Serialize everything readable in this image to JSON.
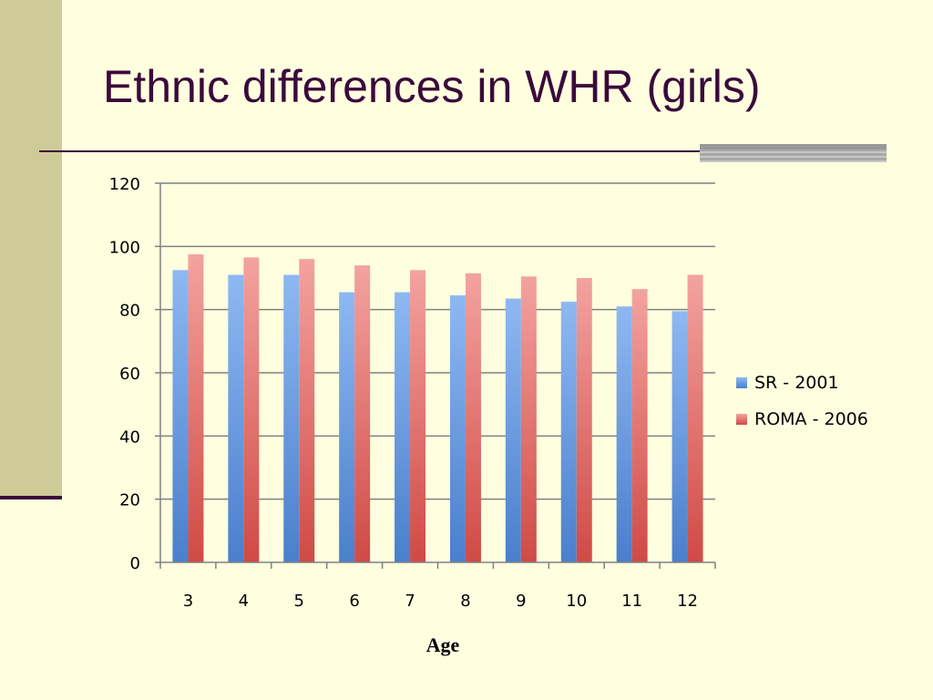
{
  "slide": {
    "title": "Ethnic differences in WHR (girls)"
  },
  "chart_data": {
    "type": "bar",
    "categories": [
      "3",
      "4",
      "5",
      "6",
      "7",
      "8",
      "9",
      "10",
      "11",
      "12"
    ],
    "series": [
      {
        "name": "SR - 2001",
        "values": [
          92.5,
          91,
          91,
          85.5,
          85.5,
          84.5,
          83.5,
          82.5,
          81,
          79.5
        ]
      },
      {
        "name": "ROMA - 2006",
        "values": [
          97.5,
          96.5,
          96,
          94,
          92.5,
          91.5,
          90.5,
          90,
          86.5,
          91
        ]
      }
    ],
    "title": "",
    "xlabel": "Age",
    "ylabel": "",
    "ylim": [
      0,
      120
    ],
    "yticks": [
      0,
      20,
      40,
      60,
      80,
      100,
      120
    ],
    "grid": true,
    "legend_position": "right",
    "colors": {
      "series_1_top": "#8EB8F2",
      "series_1_bottom": "#4A7FCC",
      "series_2_top": "#F3A3A0",
      "series_2_bottom": "#D04A45",
      "axis": "#808080",
      "grid": "#808080"
    }
  }
}
